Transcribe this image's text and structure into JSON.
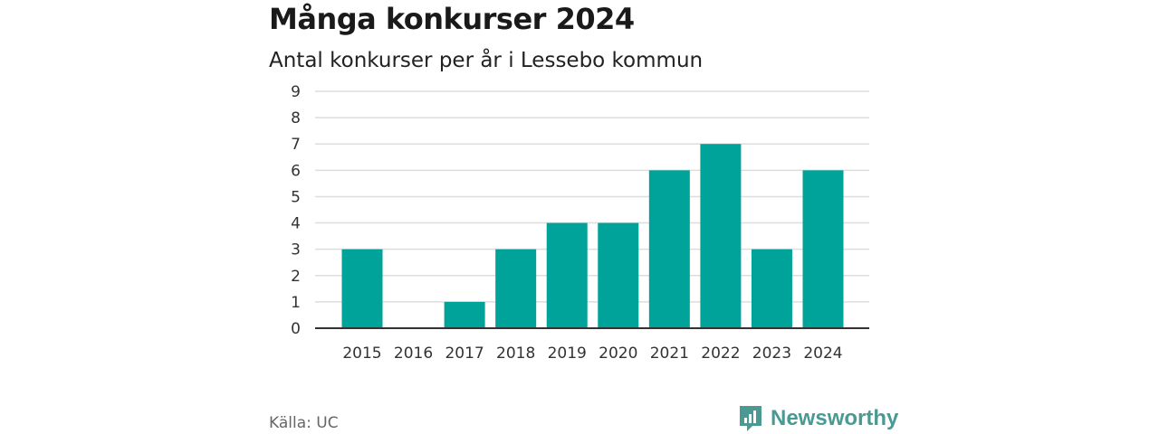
{
  "header": {
    "title": "Många konkurser 2024",
    "subtitle": "Antal konkurser per år i Lessebo kommun"
  },
  "footer": {
    "source": "Källa: UC",
    "brand": "Newsworthy",
    "brand_icon": "newsworthy-logo-icon"
  },
  "colors": {
    "bar": "#00a39a",
    "grid": "#dddddd",
    "axis": "#333333",
    "brand": "#4a9a93"
  },
  "chart_data": {
    "type": "bar",
    "title": "Många konkurser 2024",
    "subtitle": "Antal konkurser per år i Lessebo kommun",
    "categories": [
      "2015",
      "2016",
      "2017",
      "2018",
      "2019",
      "2020",
      "2021",
      "2022",
      "2023",
      "2024"
    ],
    "values": [
      3,
      0,
      1,
      3,
      4,
      4,
      6,
      7,
      3,
      6
    ],
    "ylim": [
      0,
      9
    ],
    "yticks": [
      0,
      1,
      2,
      3,
      4,
      5,
      6,
      7,
      8,
      9
    ],
    "grid": true,
    "legend": "none"
  }
}
